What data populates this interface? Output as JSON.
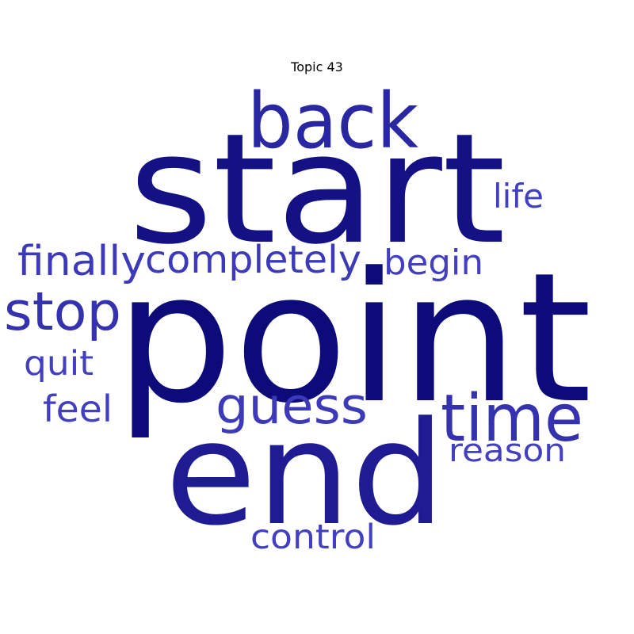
{
  "title": "Topic 43",
  "words": [
    {
      "text": "point",
      "color": "#0d0a7a"
    },
    {
      "text": "start",
      "color": "#141185"
    },
    {
      "text": "end",
      "color": "#1f1c93"
    },
    {
      "text": "back",
      "color": "#2a27a3"
    },
    {
      "text": "time",
      "color": "#3532b0"
    },
    {
      "text": "stop",
      "color": "#3532b0"
    },
    {
      "text": "guess",
      "color": "#3d3ab9"
    },
    {
      "text": "finally",
      "color": "#3d3ab9"
    },
    {
      "text": "completely",
      "color": "#3d3ab9"
    },
    {
      "text": "begin",
      "color": "#423fc0"
    },
    {
      "text": "life",
      "color": "#423fc0"
    },
    {
      "text": "reason",
      "color": "#423fc0"
    },
    {
      "text": "quit",
      "color": "#423fc0"
    },
    {
      "text": "feel",
      "color": "#423fc0"
    },
    {
      "text": "control",
      "color": "#423fc0"
    }
  ]
}
